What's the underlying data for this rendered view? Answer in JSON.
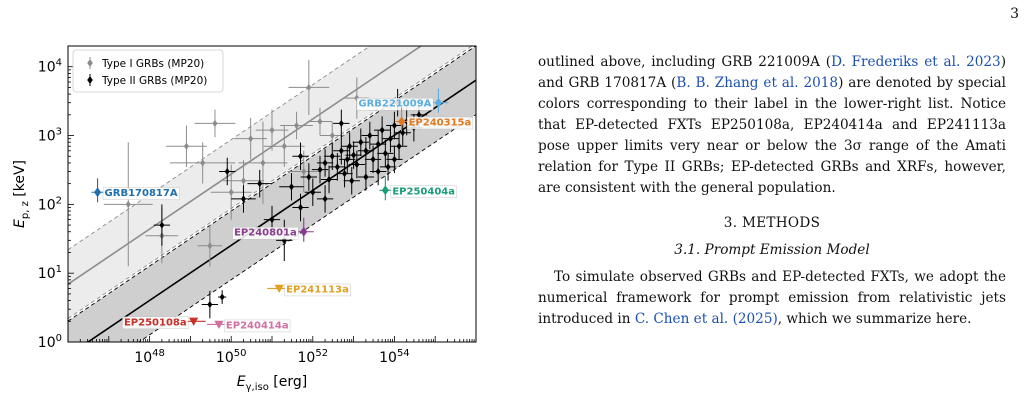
{
  "page_number": "3",
  "paragraph1": {
    "segments": [
      {
        "text": "outlined above, including GRB 221009A (",
        "cite": false
      },
      {
        "text": "D. Frederiks et al. 2023",
        "cite": true
      },
      {
        "text": ") and GRB 170817A (",
        "cite": false
      },
      {
        "text": "B. B. Zhang et al. 2018",
        "cite": true
      },
      {
        "text": ") are denoted by special colors corresponding to their label in the lower-right list. Notice that EP-detected FXTs EP250108a, EP240414a and EP241113a pose upper limits very near or below the 3σ range of the Amati relation for Type II GRBs; EP-detected GRBs and XRFs, however, are consistent with the general population.",
        "cite": false
      }
    ]
  },
  "section_heading": "3. METHODS",
  "subsection_heading": "3.1. Prompt Emission Model",
  "paragraph2": {
    "segments": [
      {
        "text": "To simulate observed GRBs and EP-detected FXTs, we adopt the numerical framework for prompt emission from relativistic jets introduced in ",
        "cite": false
      },
      {
        "text": "C. Chen et al. (2025)",
        "cite": true
      },
      {
        "text": ", which we summarize here.",
        "cite": false
      }
    ]
  },
  "chart_data": {
    "type": "scatter",
    "xlabel": "E_γ,iso [erg]",
    "ylabel": "E_p,z [keV]",
    "x_scale": "log",
    "y_scale": "log",
    "xlim": [
      1e+46,
      1e+56
    ],
    "ylim": [
      1,
      20000
    ],
    "x_ticks": [
      {
        "value": 1e+48,
        "label": "10^48"
      },
      {
        "value": 1e+50,
        "label": "10^50"
      },
      {
        "value": 1e+52,
        "label": "10^52"
      },
      {
        "value": 1e+54,
        "label": "10^54"
      }
    ],
    "y_ticks": [
      {
        "value": 1,
        "label": "10^0"
      },
      {
        "value": 10,
        "label": "10^1"
      },
      {
        "value": 100,
        "label": "10^2"
      },
      {
        "value": 1000,
        "label": "10^3"
      },
      {
        "value": 10000,
        "label": "10^4"
      }
    ],
    "legend": {
      "placement": "top-left",
      "entries": [
        {
          "label": "Type I GRBs (MP20)",
          "color": "#8c8c8c",
          "marker": "diamond"
        },
        {
          "label": "Type II GRBs (MP20)",
          "color": "#000000",
          "marker": "diamond"
        }
      ]
    },
    "relations": [
      {
        "name_ref": "Type I",
        "slope": 0.4,
        "anchor_x": 1e+52,
        "anchor_y": 1740,
        "band_factor": 3.16,
        "line_color": "#8c8c8c",
        "band_color": "#ececec"
      },
      {
        "name_ref": "Type II",
        "slope": 0.4,
        "anchor_x": 1e+52,
        "anchor_y": 160,
        "band_factor": 3.16,
        "line_color": "#000000",
        "band_color": "#cfcfcf"
      }
    ],
    "series": [
      {
        "name": "Type I GRBs (MP20)",
        "color": "#8c8c8c",
        "points": [
          {
            "x": 3e+47,
            "y": 100,
            "xerr": 0.6,
            "yerr": 0.9
          },
          {
            "x": 2e+48,
            "y": 35,
            "xerr": 0.4,
            "yerr": 0.4
          },
          {
            "x": 8e+48,
            "y": 700,
            "xerr": 0.5,
            "yerr": 0.3
          },
          {
            "x": 2e+49,
            "y": 400,
            "xerr": 0.8,
            "yerr": 0.3
          },
          {
            "x": 4e+49,
            "y": 1500,
            "xerr": 0.5,
            "yerr": 0.2
          },
          {
            "x": 1e+50,
            "y": 150,
            "xerr": 0.5,
            "yerr": 0.4
          },
          {
            "x": 3e+50,
            "y": 900,
            "xerr": 0.4,
            "yerr": 0.3
          },
          {
            "x": 6e+50,
            "y": 400,
            "xerr": 0.6,
            "yerr": 0.6
          },
          {
            "x": 1e+51,
            "y": 1200,
            "xerr": 0.4,
            "yerr": 0.3
          },
          {
            "x": 2e+51,
            "y": 700,
            "xerr": 0.5,
            "yerr": 0.3
          },
          {
            "x": 4e+51,
            "y": 1400,
            "xerr": 0.4,
            "yerr": 0.2
          },
          {
            "x": 8e+51,
            "y": 5000,
            "xerr": 0.5,
            "yerr": 0.4
          },
          {
            "x": 1.5e+52,
            "y": 1600,
            "xerr": 0.3,
            "yerr": 0.2
          },
          {
            "x": 3e+52,
            "y": 1000,
            "xerr": 0.3,
            "yerr": 0.2
          },
          {
            "x": 3e+49,
            "y": 25,
            "xerr": 0.3,
            "yerr": 0.3
          },
          {
            "x": 2e+50,
            "y": 220,
            "xerr": 0.5,
            "yerr": 0.3
          },
          {
            "x": 6e+51,
            "y": 300,
            "xerr": 0.4,
            "yerr": 0.3
          },
          {
            "x": 1.2e+53,
            "y": 3500,
            "xerr": 0.3,
            "yerr": 0.3
          }
        ]
      },
      {
        "name": "Type II GRBs (MP20)",
        "color": "#000000",
        "points": [
          {
            "x": 3e+49,
            "y": 3.5,
            "xerr": 0.2,
            "yerr": 0.2
          },
          {
            "x": 6e+49,
            "y": 4.5,
            "xerr": 0.1,
            "yerr": 0.1
          },
          {
            "x": 2e+48,
            "y": 50,
            "xerr": 0.2,
            "yerr": 0.3
          },
          {
            "x": 8e+49,
            "y": 300,
            "xerr": 0.2,
            "yerr": 0.2
          },
          {
            "x": 2e+50,
            "y": 120,
            "xerr": 0.3,
            "yerr": 0.2
          },
          {
            "x": 5e+50,
            "y": 200,
            "xerr": 0.3,
            "yerr": 0.2
          },
          {
            "x": 1e+51,
            "y": 60,
            "xerr": 0.2,
            "yerr": 0.2
          },
          {
            "x": 2e+51,
            "y": 30,
            "xerr": 0.2,
            "yerr": 0.3
          },
          {
            "x": 3e+51,
            "y": 180,
            "xerr": 0.3,
            "yerr": 0.2
          },
          {
            "x": 5e+51,
            "y": 90,
            "xerr": 0.2,
            "yerr": 0.2
          },
          {
            "x": 8e+51,
            "y": 250,
            "xerr": 0.2,
            "yerr": 0.2
          },
          {
            "x": 1e+52,
            "y": 150,
            "xerr": 0.2,
            "yerr": 0.2
          },
          {
            "x": 1.5e+52,
            "y": 320,
            "xerr": 0.2,
            "yerr": 0.2
          },
          {
            "x": 2e+52,
            "y": 400,
            "xerr": 0.2,
            "yerr": 0.2
          },
          {
            "x": 2.5e+52,
            "y": 230,
            "xerr": 0.2,
            "yerr": 0.2
          },
          {
            "x": 3e+52,
            "y": 500,
            "xerr": 0.2,
            "yerr": 0.2
          },
          {
            "x": 4e+52,
            "y": 350,
            "xerr": 0.2,
            "yerr": 0.2
          },
          {
            "x": 5e+52,
            "y": 600,
            "xerr": 0.2,
            "yerr": 0.2
          },
          {
            "x": 6e+52,
            "y": 280,
            "xerr": 0.2,
            "yerr": 0.2
          },
          {
            "x": 7e+52,
            "y": 450,
            "xerr": 0.2,
            "yerr": 0.2
          },
          {
            "x": 8e+52,
            "y": 700,
            "xerr": 0.2,
            "yerr": 0.2
          },
          {
            "x": 1e+53,
            "y": 520,
            "xerr": 0.2,
            "yerr": 0.2
          },
          {
            "x": 1.2e+53,
            "y": 380,
            "xerr": 0.2,
            "yerr": 0.2
          },
          {
            "x": 1.5e+53,
            "y": 800,
            "xerr": 0.2,
            "yerr": 0.2
          },
          {
            "x": 2e+53,
            "y": 600,
            "xerr": 0.2,
            "yerr": 0.2
          },
          {
            "x": 2.5e+53,
            "y": 1000,
            "xerr": 0.2,
            "yerr": 0.2
          },
          {
            "x": 3e+53,
            "y": 450,
            "xerr": 0.2,
            "yerr": 0.2
          },
          {
            "x": 4e+53,
            "y": 750,
            "xerr": 0.2,
            "yerr": 0.2
          },
          {
            "x": 5e+53,
            "y": 1200,
            "xerr": 0.2,
            "yerr": 0.2
          },
          {
            "x": 6e+53,
            "y": 550,
            "xerr": 0.2,
            "yerr": 0.2
          },
          {
            "x": 8e+53,
            "y": 900,
            "xerr": 0.2,
            "yerr": 0.2
          },
          {
            "x": 1e+54,
            "y": 1400,
            "xerr": 0.2,
            "yerr": 0.2
          },
          {
            "x": 1.3e+54,
            "y": 700,
            "xerr": 0.2,
            "yerr": 0.2
          },
          {
            "x": 1.6e+54,
            "y": 1100,
            "xerr": 0.2,
            "yerr": 0.2
          },
          {
            "x": 2e+54,
            "y": 1600,
            "xerr": 0.2,
            "yerr": 0.2
          },
          {
            "x": 3e+54,
            "y": 1300,
            "xerr": 0.2,
            "yerr": 0.2
          },
          {
            "x": 4e+54,
            "y": 2000,
            "xerr": 0.2,
            "yerr": 0.2
          },
          {
            "x": 2e+53,
            "y": 250,
            "xerr": 0.2,
            "yerr": 0.2
          },
          {
            "x": 4e+53,
            "y": 300,
            "xerr": 0.2,
            "yerr": 0.2
          },
          {
            "x": 7e+53,
            "y": 350,
            "xerr": 0.2,
            "yerr": 0.2
          },
          {
            "x": 1e+54,
            "y": 450,
            "xerr": 0.2,
            "yerr": 0.2
          },
          {
            "x": 5e+52,
            "y": 1500,
            "xerr": 0.2,
            "yerr": 0.2
          },
          {
            "x": 1.2e+54,
            "y": 3000,
            "xerr": 0.2,
            "yerr": 0.2
          },
          {
            "x": 9e+52,
            "y": 220,
            "xerr": 0.2,
            "yerr": 0.2
          },
          {
            "x": 2e+52,
            "y": 120,
            "xerr": 0.2,
            "yerr": 0.2
          },
          {
            "x": 5e+51,
            "y": 500,
            "xerr": 0.2,
            "yerr": 0.2
          }
        ]
      }
    ],
    "special_events": [
      {
        "label": "GRB221009A",
        "x": 1.2e+55,
        "y": 3000,
        "color": "#5aaee0",
        "marker": "diamond",
        "upper_limit": false,
        "label_anchor": "left"
      },
      {
        "label": "EP240315a",
        "x": 1.5e+54,
        "y": 1600,
        "color": "#e07a20",
        "marker": "diamond",
        "upper_limit": false,
        "label_anchor": "right"
      },
      {
        "label": "GRB170817A",
        "x": 5.3e+46,
        "y": 150,
        "color": "#1f6fae",
        "marker": "diamond",
        "upper_limit": false,
        "label_anchor": "right"
      },
      {
        "label": "EP250404a",
        "x": 6e+53,
        "y": 160,
        "color": "#1a9e7a",
        "marker": "diamond",
        "upper_limit": false,
        "label_anchor": "right"
      },
      {
        "label": "EP240801a",
        "x": 6e+51,
        "y": 40,
        "color": "#8a3b8f",
        "marker": "diamond",
        "upper_limit": false,
        "label_anchor": "left"
      },
      {
        "label": "EP241113a",
        "x": 1.5e+51,
        "y": 6,
        "color": "#e0a020",
        "marker": "triangle-down",
        "upper_limit": true,
        "label_anchor": "right"
      },
      {
        "label": "EP250108a",
        "x": 1.2e+49,
        "y": 2,
        "color": "#c8302a",
        "marker": "triangle-down",
        "upper_limit": true,
        "label_anchor": "left"
      },
      {
        "label": "EP240414a",
        "x": 5e+49,
        "y": 1.8,
        "color": "#d070a0",
        "marker": "triangle-down",
        "upper_limit": true,
        "label_anchor": "right"
      }
    ]
  }
}
